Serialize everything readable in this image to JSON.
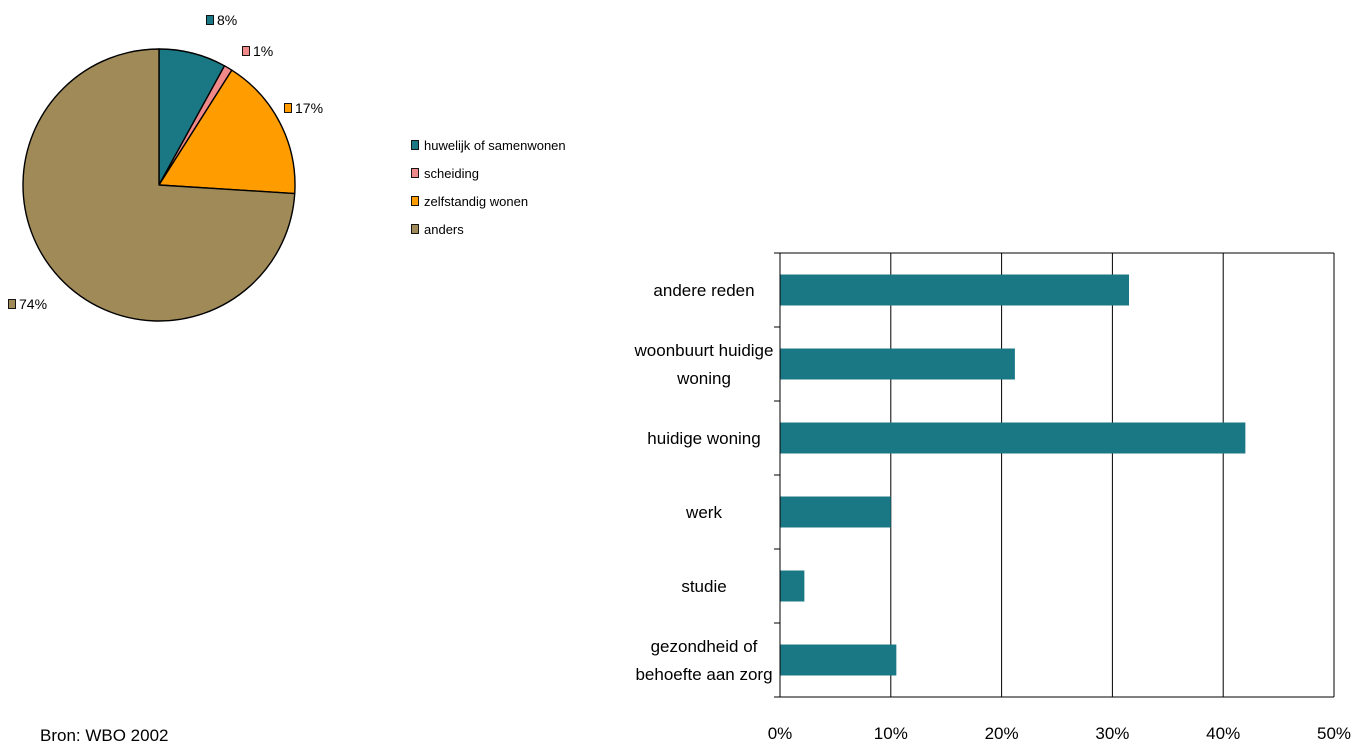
{
  "chart_data": [
    {
      "type": "pie",
      "slices": [
        {
          "label": "huwelijk of samenwonen",
          "value": 8,
          "value_label": "8%",
          "color": "#1a7885"
        },
        {
          "label": "scheiding",
          "value": 1,
          "value_label": "1%",
          "color": "#f08a8a"
        },
        {
          "label": "zelfstandig wonen",
          "value": 17,
          "value_label": "17%",
          "color": "#ff9c00"
        },
        {
          "label": "anders",
          "value": 74,
          "value_label": "74%",
          "color": "#a08a58"
        }
      ],
      "legend_position": "right"
    },
    {
      "type": "bar",
      "orientation": "horizontal",
      "categories": [
        [
          "andere reden"
        ],
        [
          "woonbuurt huidige",
          "woning"
        ],
        [
          "huidige woning"
        ],
        [
          "werk"
        ],
        [
          "studie"
        ],
        [
          "gezondheid of",
          "behoefte aan zorg"
        ]
      ],
      "values": [
        31.5,
        21.2,
        42.0,
        10.0,
        2.2,
        10.5
      ],
      "color": "#1a7885",
      "xlim": [
        0,
        50
      ],
      "xticks": [
        "0%",
        "10%",
        "20%",
        "30%",
        "40%",
        "50%"
      ],
      "grid": true
    }
  ],
  "source": "Bron: WBO 2002"
}
